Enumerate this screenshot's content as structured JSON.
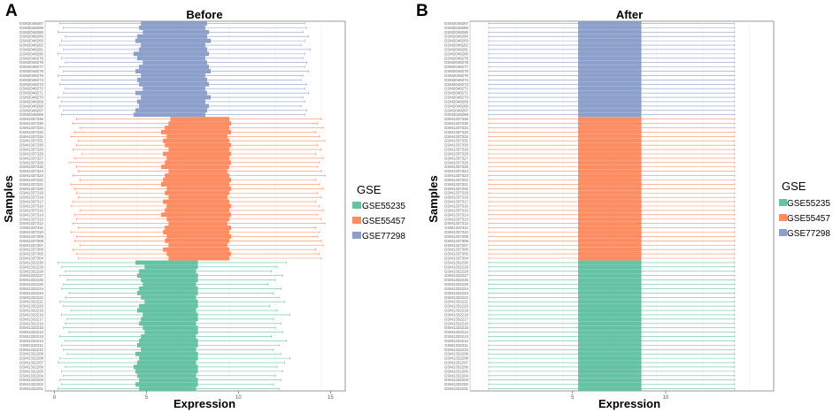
{
  "figure": {
    "panel_a_label": "A",
    "panel_b_label": "B",
    "legend_title": "GSE",
    "colors": {
      "GSE55235": "#66c2a5",
      "GSE55457": "#fc8d62",
      "GSE77298": "#8da0cb"
    }
  },
  "chart_data": [
    {
      "type": "boxplot",
      "panel": "A",
      "title": "Before",
      "xlabel": "Expression",
      "ylabel": "Samples",
      "xlim": [
        -0.5,
        15.8
      ],
      "xticks": [
        0,
        5,
        10,
        15
      ],
      "legend": [
        "GSE55235",
        "GSE55457",
        "GSE77298"
      ],
      "series": [
        {
          "name": "GSE77298",
          "samples": [
            "GSM2048287",
            "GSM2048286",
            "GSM2048285",
            "GSM2048284",
            "GSM2048283",
            "GSM2048282",
            "GSM2048281",
            "GSM2048280",
            "GSM2048279",
            "GSM2048278",
            "GSM2048277",
            "GSM2048276",
            "GSM2048275",
            "GSM2048274",
            "GSM2048273",
            "GSM2048272",
            "GSM2048271",
            "GSM2048270",
            "GSM2048269",
            "GSM2048268",
            "GSM2048267",
            "GSM2048266"
          ],
          "min": [
            0.3,
            0.5,
            0.2,
            0.6,
            0.4,
            0.3,
            0.5,
            0.2,
            0.4,
            0.6,
            0.3,
            0.5,
            0.2,
            0.4,
            0.3,
            0.6,
            0.5,
            0.2,
            0.4,
            0.3,
            0.5,
            0.4
          ],
          "q1": [
            4.7,
            4.6,
            4.8,
            4.5,
            4.4,
            4.7,
            4.6,
            4.3,
            4.5,
            4.8,
            4.6,
            4.4,
            4.7,
            4.5,
            4.6,
            4.8,
            4.4,
            4.7,
            4.5,
            4.6,
            4.4,
            4.3
          ],
          "median": [
            6.2,
            6.1,
            6.3,
            6.0,
            6.2,
            6.1,
            6.3,
            6.0,
            6.1,
            6.2,
            6.0,
            6.3,
            6.1,
            6.2,
            6.0,
            6.1,
            6.3,
            6.2,
            6.0,
            6.1,
            6.2,
            6.1
          ],
          "q3": [
            8.3,
            8.2,
            8.4,
            8.3,
            8.5,
            8.2,
            8.3,
            8.4,
            8.2,
            8.3,
            8.4,
            8.5,
            8.2,
            8.3,
            8.4,
            8.2,
            8.3,
            8.5,
            8.2,
            8.4,
            8.3,
            8.2
          ],
          "max": [
            13.6,
            13.7,
            13.5,
            13.8,
            13.6,
            13.4,
            13.9,
            13.6,
            13.5,
            13.7,
            13.6,
            13.8,
            13.5,
            13.4,
            13.7,
            13.6,
            13.8,
            13.5,
            13.6,
            13.4,
            13.7,
            13.6
          ]
        },
        {
          "name": "GSE55457",
          "samples": [
            "GSM1337336",
            "GSM1337335",
            "GSM1337334",
            "GSM1337333",
            "GSM1337332",
            "GSM1337331",
            "GSM1337330",
            "GSM1337329",
            "GSM1337328",
            "GSM1337327",
            "GSM1337326",
            "GSM1337325",
            "GSM1337324",
            "GSM1337323",
            "GSM1337322",
            "GSM1337321",
            "GSM1337320",
            "GSM1337319",
            "GSM1337318",
            "GSM1337317",
            "GSM1337316",
            "GSM1337315",
            "GSM1337314",
            "GSM1337313",
            "GSM1337312",
            "GSM1337311",
            "GSM1337310",
            "GSM1337309",
            "GSM1337308",
            "GSM1337307",
            "GSM1337306",
            "GSM1337305",
            "GSM1337304"
          ],
          "min": [
            1.2,
            1.0,
            1.4,
            1.1,
            0.9,
            1.3,
            1.2,
            1.0,
            1.5,
            1.1,
            0.8,
            1.2,
            1.3,
            1.0,
            1.4,
            0.9,
            1.1,
            1.2,
            1.3,
            1.0,
            0.9,
            1.4,
            1.1,
            1.2,
            1.0,
            1.3,
            0.9,
            1.2,
            1.1,
            1.4,
            1.0,
            1.2,
            1.3
          ],
          "q1": [
            6.3,
            6.2,
            6.0,
            5.8,
            6.1,
            5.9,
            6.0,
            6.2,
            5.9,
            6.1,
            6.0,
            5.8,
            6.2,
            6.0,
            5.9,
            5.8,
            6.1,
            6.0,
            6.2,
            5.9,
            6.1,
            6.0,
            5.8,
            6.1,
            6.2,
            6.0,
            5.9,
            6.1,
            6.0,
            6.2,
            5.9,
            6.1,
            6.2
          ],
          "median": [
            7.8,
            7.9,
            7.7,
            7.8,
            7.9,
            7.8,
            7.7,
            7.9,
            7.8,
            7.8,
            7.7,
            7.9,
            7.8,
            7.9,
            7.8,
            7.7,
            7.8,
            7.9,
            7.8,
            7.7,
            7.8,
            7.9,
            7.8,
            7.7,
            7.8,
            7.9,
            7.8,
            7.8,
            7.7,
            7.9,
            7.8,
            7.8,
            7.9
          ],
          "q3": [
            9.5,
            9.6,
            9.5,
            9.6,
            9.4,
            9.5,
            9.6,
            9.5,
            9.6,
            9.5,
            9.6,
            9.5,
            9.4,
            9.5,
            9.6,
            9.5,
            9.6,
            9.5,
            9.4,
            9.5,
            9.6,
            9.5,
            9.6,
            9.5,
            9.4,
            9.6,
            9.5,
            9.6,
            9.5,
            9.4,
            9.5,
            9.6,
            9.5
          ],
          "max": [
            14.5,
            14.3,
            14.6,
            14.2,
            14.4,
            14.7,
            14.3,
            14.5,
            14.2,
            14.6,
            14.4,
            14.3,
            14.5,
            14.7,
            14.2,
            14.4,
            14.6,
            14.3,
            14.5,
            14.2,
            14.4,
            14.6,
            14.3,
            14.5,
            14.7,
            14.2,
            14.4,
            14.3,
            14.5,
            14.6,
            14.2,
            14.4,
            14.5
          ]
        },
        {
          "name": "GSE55235",
          "samples": [
            "GSM1332230",
            "GSM1332229",
            "GSM1332228",
            "GSM1332227",
            "GSM1332226",
            "GSM1332225",
            "GSM1332224",
            "GSM1332223",
            "GSM1332222",
            "GSM1332221",
            "GSM1332220",
            "GSM1332219",
            "GSM1332218",
            "GSM1332217",
            "GSM1332216",
            "GSM1332215",
            "GSM1332214",
            "GSM1332213",
            "GSM1332212",
            "GSM1332211",
            "GSM1332210",
            "GSM1332209",
            "GSM1332208",
            "GSM1332207",
            "GSM1332206",
            "GSM1332205",
            "GSM1332204",
            "GSM1332203",
            "GSM1332202",
            "GSM1332201"
          ],
          "min": [
            0.2,
            0.4,
            0.6,
            0.3,
            0.7,
            0.5,
            0.4,
            0.8,
            0.6,
            0.3,
            0.5,
            0.9,
            0.4,
            0.7,
            0.6,
            0.5,
            0.8,
            0.3,
            0.6,
            0.4,
            0.5,
            0.7,
            0.3,
            0.2,
            0.6,
            0.4,
            0.5,
            0.3,
            0.4,
            0.2
          ],
          "q1": [
            4.4,
            4.9,
            4.6,
            4.5,
            4.7,
            4.8,
            4.6,
            4.5,
            4.7,
            4.9,
            4.6,
            4.5,
            4.8,
            4.7,
            4.6,
            4.8,
            4.9,
            4.7,
            4.6,
            4.5,
            4.7,
            4.4,
            4.6,
            4.5,
            4.3,
            4.4,
            4.5,
            4.6,
            4.4,
            4.6
          ],
          "median": [
            6.0,
            6.1,
            6.0,
            6.1,
            6.0,
            6.1,
            6.0,
            6.1,
            6.0,
            6.1,
            6.0,
            6.1,
            6.0,
            6.1,
            6.0,
            6.1,
            6.0,
            6.1,
            6.0,
            6.1,
            6.0,
            6.1,
            6.0,
            6.1,
            6.0,
            6.1,
            6.0,
            6.1,
            6.0,
            6.1
          ],
          "q3": [
            7.8,
            7.8,
            7.7,
            7.8,
            7.8,
            7.7,
            7.8,
            7.8,
            7.7,
            7.8,
            7.8,
            7.7,
            7.8,
            7.8,
            7.7,
            7.8,
            7.8,
            7.7,
            7.8,
            7.8,
            7.7,
            7.8,
            7.8,
            7.7,
            7.8,
            7.8,
            7.7,
            7.8,
            7.8,
            7.7
          ],
          "max": [
            12.6,
            12.1,
            11.8,
            12.4,
            12.0,
            11.6,
            12.3,
            11.9,
            12.2,
            12.5,
            11.7,
            12.1,
            12.8,
            11.9,
            12.3,
            12.0,
            12.4,
            11.8,
            12.6,
            12.2,
            11.9,
            12.3,
            12.8,
            12.5,
            12.1,
            12.4,
            12.0,
            12.3,
            11.9,
            12.2
          ]
        }
      ]
    },
    {
      "type": "boxplot",
      "panel": "B",
      "title": "After",
      "xlabel": "Expression",
      "ylabel": "Samples",
      "xlim": [
        -0.5,
        15.8
      ],
      "xticks": [
        5,
        10
      ],
      "legend": [
        "GSE55235",
        "GSE55457",
        "GSE77298"
      ],
      "series": [
        {
          "name": "GSE77298",
          "count": 22,
          "min": 0.5,
          "q1": 5.3,
          "median": 7.0,
          "q3": 8.7,
          "max": 13.7
        },
        {
          "name": "GSE55457",
          "count": 33,
          "min": 0.5,
          "q1": 5.3,
          "median": 7.0,
          "q3": 8.7,
          "max": 13.7
        },
        {
          "name": "GSE55235",
          "count": 30,
          "min": 0.5,
          "q1": 5.3,
          "median": 7.0,
          "q3": 8.7,
          "max": 13.7
        }
      ]
    }
  ]
}
